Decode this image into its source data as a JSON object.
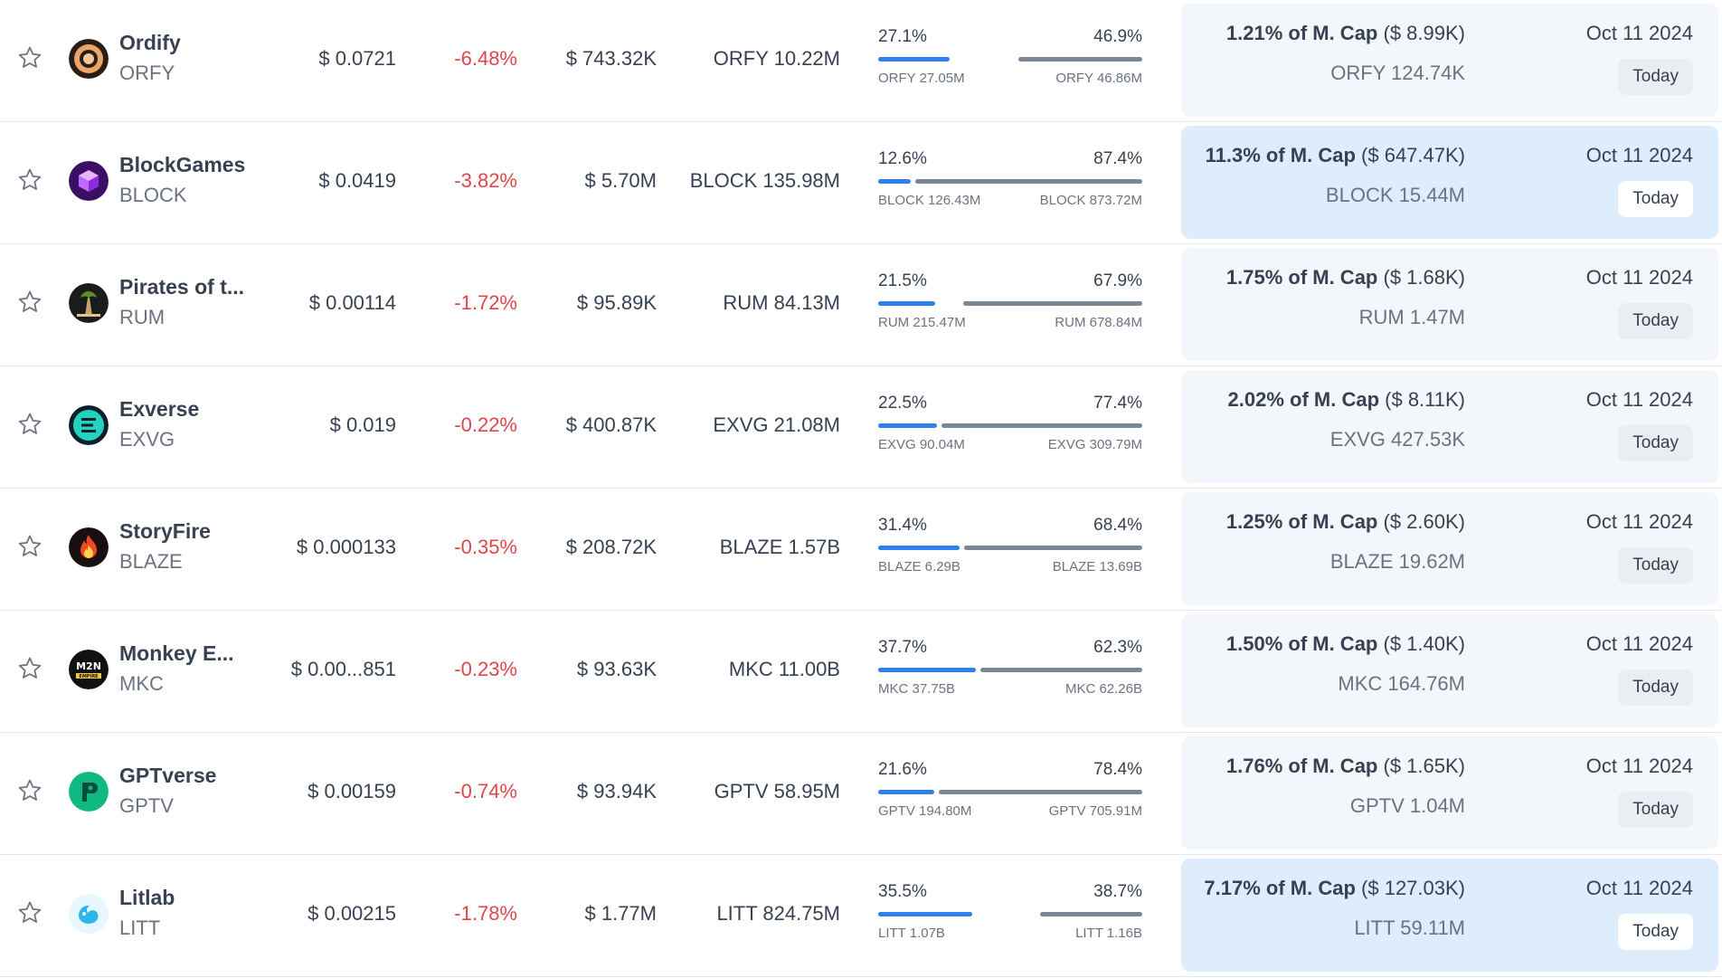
{
  "rows": [
    {
      "name": "Ordify",
      "ticker": "ORFY",
      "price": "$ 0.0721",
      "change": "-6.48%",
      "market_cap": "$ 743.32K",
      "circulating": "ORFY 10.22M",
      "unlocked_pct": "27.1%",
      "locked_pct": "46.9%",
      "unlocked_amount": "ORFY 27.05M",
      "locked_amount": "ORFY 46.86M",
      "unlocked_fraction": 0.271,
      "locked_fraction": 0.469,
      "next_unlock_pct": "1.21% of M. Cap",
      "next_unlock_value": "($ 8.99K)",
      "next_unlock_tokens": "ORFY 124.74K",
      "next_unlock_date": "Oct 11 2024",
      "countdown": "Today",
      "highlighted": false,
      "logo": "ordify-logo-icon"
    },
    {
      "name": "BlockGames",
      "ticker": "BLOCK",
      "price": "$ 0.0419",
      "change": "-3.82%",
      "market_cap": "$ 5.70M",
      "circulating": "BLOCK 135.98M",
      "unlocked_pct": "12.6%",
      "locked_pct": "87.4%",
      "unlocked_amount": "BLOCK 126.43M",
      "locked_amount": "BLOCK 873.72M",
      "unlocked_fraction": 0.126,
      "locked_fraction": 0.874,
      "next_unlock_pct": "11.3% of M. Cap",
      "next_unlock_value": "($ 647.47K)",
      "next_unlock_tokens": "BLOCK 15.44M",
      "next_unlock_date": "Oct 11 2024",
      "countdown": "Today",
      "highlighted": true,
      "logo": "blockgames-logo-icon"
    },
    {
      "name": "Pirates of t...",
      "ticker": "RUM",
      "price": "$ 0.00114",
      "change": "-1.72%",
      "market_cap": "$ 95.89K",
      "circulating": "RUM 84.13M",
      "unlocked_pct": "21.5%",
      "locked_pct": "67.9%",
      "unlocked_amount": "RUM 215.47M",
      "locked_amount": "RUM 678.84M",
      "unlocked_fraction": 0.215,
      "locked_fraction": 0.679,
      "next_unlock_pct": "1.75% of M. Cap",
      "next_unlock_value": "($ 1.68K)",
      "next_unlock_tokens": "RUM 1.47M",
      "next_unlock_date": "Oct 11 2024",
      "countdown": "Today",
      "highlighted": false,
      "logo": "pirates-logo-icon"
    },
    {
      "name": "Exverse",
      "ticker": "EXVG",
      "price": "$ 0.019",
      "change": "-0.22%",
      "market_cap": "$ 400.87K",
      "circulating": "EXVG 21.08M",
      "unlocked_pct": "22.5%",
      "locked_pct": "77.4%",
      "unlocked_amount": "EXVG 90.04M",
      "locked_amount": "EXVG 309.79M",
      "unlocked_fraction": 0.225,
      "locked_fraction": 0.774,
      "next_unlock_pct": "2.02% of M. Cap",
      "next_unlock_value": "($ 8.11K)",
      "next_unlock_tokens": "EXVG 427.53K",
      "next_unlock_date": "Oct 11 2024",
      "countdown": "Today",
      "highlighted": false,
      "logo": "exverse-logo-icon"
    },
    {
      "name": "StoryFire",
      "ticker": "BLAZE",
      "price": "$ 0.000133",
      "change": "-0.35%",
      "market_cap": "$ 208.72K",
      "circulating": "BLAZE 1.57B",
      "unlocked_pct": "31.4%",
      "locked_pct": "68.4%",
      "unlocked_amount": "BLAZE 6.29B",
      "locked_amount": "BLAZE 13.69B",
      "unlocked_fraction": 0.314,
      "locked_fraction": 0.684,
      "next_unlock_pct": "1.25% of M. Cap",
      "next_unlock_value": "($ 2.60K)",
      "next_unlock_tokens": "BLAZE 19.62M",
      "next_unlock_date": "Oct 11 2024",
      "countdown": "Today",
      "highlighted": false,
      "logo": "storyfire-logo-icon"
    },
    {
      "name": "Monkey E...",
      "ticker": "MKC",
      "price": "$ 0.00...851",
      "change": "-0.23%",
      "market_cap": "$ 93.63K",
      "circulating": "MKC 11.00B",
      "unlocked_pct": "37.7%",
      "locked_pct": "62.3%",
      "unlocked_amount": "MKC 37.75B",
      "locked_amount": "MKC 62.26B",
      "unlocked_fraction": 0.377,
      "locked_fraction": 0.623,
      "next_unlock_pct": "1.50% of M. Cap",
      "next_unlock_value": "($ 1.40K)",
      "next_unlock_tokens": "MKC 164.76M",
      "next_unlock_date": "Oct 11 2024",
      "countdown": "Today",
      "highlighted": false,
      "logo": "monkey-empire-logo-icon"
    },
    {
      "name": "GPTverse",
      "ticker": "GPTV",
      "price": "$ 0.00159",
      "change": "-0.74%",
      "market_cap": "$ 93.94K",
      "circulating": "GPTV 58.95M",
      "unlocked_pct": "21.6%",
      "locked_pct": "78.4%",
      "unlocked_amount": "GPTV 194.80M",
      "locked_amount": "GPTV 705.91M",
      "unlocked_fraction": 0.216,
      "locked_fraction": 0.784,
      "next_unlock_pct": "1.76% of M. Cap",
      "next_unlock_value": "($ 1.65K)",
      "next_unlock_tokens": "GPTV 1.04M",
      "next_unlock_date": "Oct 11 2024",
      "countdown": "Today",
      "highlighted": false,
      "logo": "gptverse-logo-icon"
    },
    {
      "name": "Litlab",
      "ticker": "LITT",
      "price": "$ 0.00215",
      "change": "-1.78%",
      "market_cap": "$ 1.77M",
      "circulating": "LITT 824.75M",
      "unlocked_pct": "35.5%",
      "locked_pct": "38.7%",
      "unlocked_amount": "LITT 1.07B",
      "locked_amount": "LITT 1.16B",
      "unlocked_fraction": 0.355,
      "locked_fraction": 0.387,
      "next_unlock_pct": "7.17% of M. Cap",
      "next_unlock_value": "($ 127.03K)",
      "next_unlock_tokens": "LITT 59.11M",
      "next_unlock_date": "Oct 11 2024",
      "countdown": "Today",
      "highlighted": true,
      "logo": "litlab-logo-icon"
    }
  ],
  "colors": {
    "negative": "#e0454c",
    "unlocked_bar": "#2f80ed",
    "locked_bar": "#7b8794",
    "card_bg": "#f3f7fc",
    "card_highlight_bg": "#deedfb"
  }
}
